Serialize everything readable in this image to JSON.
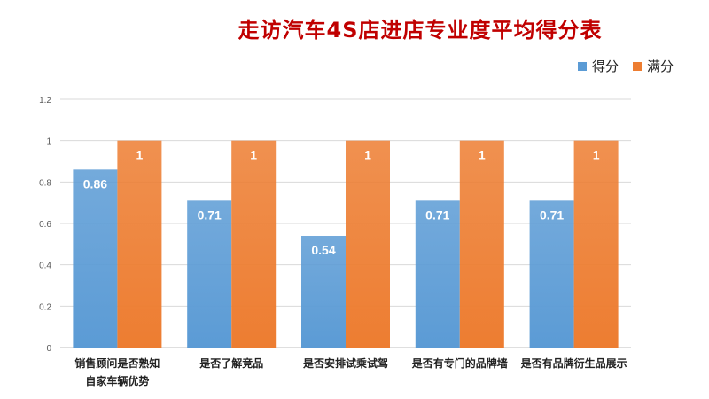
{
  "colors": {
    "title": "#c00000",
    "series_score": "#5b9bd5",
    "series_full": "#ed7d31",
    "grid": "#d9d9d9",
    "axis_text": "#595959",
    "label_text": "#ffffff"
  },
  "chart_data": {
    "type": "bar",
    "title": "走访汽车4S店进店专业度平均得分表",
    "categories": [
      [
        "销售顾问是否熟知",
        "自家车辆优势"
      ],
      [
        "是否了解竞品"
      ],
      [
        "是否安排试乘试驾"
      ],
      [
        "是否有专门的品牌墙"
      ],
      [
        "是否有品牌衍生品展示"
      ]
    ],
    "series": [
      {
        "name": "得分",
        "values": [
          0.86,
          0.71,
          0.54,
          0.71,
          0.71
        ],
        "labels": [
          "0.86",
          "0.71",
          "0.54",
          "0.71",
          "0.71"
        ]
      },
      {
        "name": "满分",
        "values": [
          1,
          1,
          1,
          1,
          1
        ],
        "labels": [
          "1",
          "1",
          "1",
          "1",
          "1"
        ]
      }
    ],
    "yticks": [
      "0",
      "0.2",
      "0.4",
      "0.6",
      "0.8",
      "1",
      "1.2"
    ],
    "ylim": [
      0,
      1.2
    ],
    "grid": true,
    "legend": "top-right",
    "xlabel": "",
    "ylabel": ""
  }
}
